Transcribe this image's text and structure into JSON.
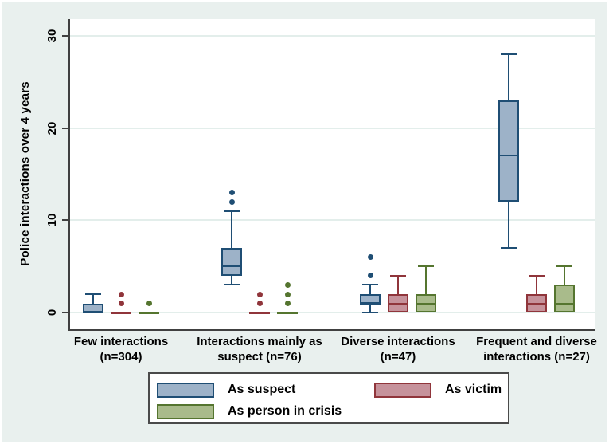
{
  "figure": {
    "background": "#e9f0ee",
    "plot_background": "#ffffff",
    "gridline_color": "#e3eeeb",
    "axis_color": "#404040",
    "text_color": "#000000"
  },
  "chart_data": {
    "type": "box",
    "title": "",
    "xlabel": "",
    "ylabel": "Police interactions over 4 years",
    "yticks": [
      0,
      10,
      20,
      30
    ],
    "ylim": [
      -1.8,
      31.8
    ],
    "grid": true,
    "legend_position": "bottom-center",
    "series": [
      {
        "name": "As suspect",
        "fill": "#9db2c8",
        "stroke": "#1f4e74"
      },
      {
        "name": "As victim",
        "fill": "#c6929b",
        "stroke": "#90353b"
      },
      {
        "name": "As person in crisis",
        "fill": "#a9bb8b",
        "stroke": "#55752f"
      }
    ],
    "groups": [
      {
        "label_lines": [
          "Few interactions",
          "(n=304)"
        ],
        "boxes": [
          {
            "series": "As suspect",
            "min": 0,
            "q1": 0,
            "median": 0,
            "q3": 1,
            "max": 2,
            "outliers": []
          },
          {
            "series": "As victim",
            "min": 0,
            "q1": 0,
            "median": 0,
            "q3": 0,
            "max": 0,
            "outliers": [
              1,
              2
            ]
          },
          {
            "series": "As person in crisis",
            "min": 0,
            "q1": 0,
            "median": 0,
            "q3": 0,
            "max": 0,
            "outliers": [
              1
            ]
          }
        ]
      },
      {
        "label_lines": [
          "Interactions mainly as",
          "suspect (n=76)"
        ],
        "boxes": [
          {
            "series": "As suspect",
            "min": 3,
            "q1": 4,
            "median": 5,
            "q3": 7,
            "max": 11,
            "outliers": [
              12,
              13
            ]
          },
          {
            "series": "As victim",
            "min": 0,
            "q1": 0,
            "median": 0,
            "q3": 0,
            "max": 0,
            "outliers": [
              1,
              2
            ]
          },
          {
            "series": "As person in crisis",
            "min": 0,
            "q1": 0,
            "median": 0,
            "q3": 0,
            "max": 0,
            "outliers": [
              1,
              2,
              3
            ]
          }
        ]
      },
      {
        "label_lines": [
          "Diverse interactions",
          "(n=47)"
        ],
        "boxes": [
          {
            "series": "As suspect",
            "min": 0,
            "q1": 1,
            "median": 1,
            "q3": 2,
            "max": 3,
            "outliers": [
              4,
              6
            ]
          },
          {
            "series": "As victim",
            "min": 0,
            "q1": 0,
            "median": 1,
            "q3": 2,
            "max": 4,
            "outliers": []
          },
          {
            "series": "As person in crisis",
            "min": 0,
            "q1": 0,
            "median": 1,
            "q3": 2,
            "max": 5,
            "outliers": []
          }
        ]
      },
      {
        "label_lines": [
          "Frequent and diverse",
          "interactions (n=27)"
        ],
        "boxes": [
          {
            "series": "As suspect",
            "min": 7,
            "q1": 12,
            "median": 17,
            "q3": 23,
            "max": 28,
            "outliers": []
          },
          {
            "series": "As victim",
            "min": 0,
            "q1": 0,
            "median": 1,
            "q3": 2,
            "max": 4,
            "outliers": []
          },
          {
            "series": "As person in crisis",
            "min": 0,
            "q1": 0,
            "median": 1,
            "q3": 3,
            "max": 5,
            "outliers": []
          }
        ]
      }
    ]
  },
  "legend": {
    "items": [
      {
        "label": "As suspect"
      },
      {
        "label": "As victim"
      },
      {
        "label": "As person in crisis"
      }
    ]
  }
}
